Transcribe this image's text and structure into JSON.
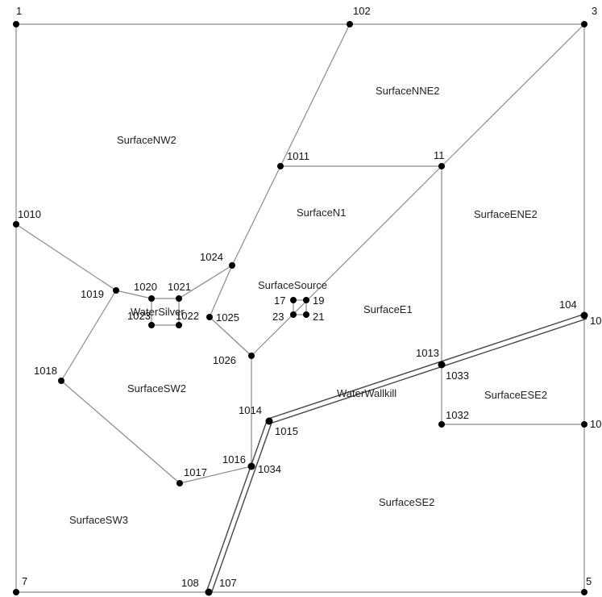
{
  "diagram": {
    "nodes": [
      {
        "id": "1",
        "label": "1"
      },
      {
        "id": "102",
        "label": "102"
      },
      {
        "id": "3",
        "label": "3"
      },
      {
        "id": "1011",
        "label": "1011"
      },
      {
        "id": "11",
        "label": "11"
      },
      {
        "id": "1010",
        "label": "1010"
      },
      {
        "id": "1024",
        "label": "1024"
      },
      {
        "id": "1019",
        "label": "1019"
      },
      {
        "id": "1020",
        "label": "1020"
      },
      {
        "id": "1021",
        "label": "1021"
      },
      {
        "id": "1023",
        "label": "1023"
      },
      {
        "id": "1022",
        "label": "1022"
      },
      {
        "id": "1025",
        "label": "1025"
      },
      {
        "id": "17",
        "label": "17"
      },
      {
        "id": "19",
        "label": "19"
      },
      {
        "id": "23",
        "label": "23"
      },
      {
        "id": "21",
        "label": "21"
      },
      {
        "id": "104",
        "label": "104"
      },
      {
        "id": "10r1",
        "label": "10"
      },
      {
        "id": "1026",
        "label": "1026"
      },
      {
        "id": "1013",
        "label": "1013"
      },
      {
        "id": "1033",
        "label": "1033"
      },
      {
        "id": "1018",
        "label": "1018"
      },
      {
        "id": "1014",
        "label": "1014"
      },
      {
        "id": "1015",
        "label": "1015"
      },
      {
        "id": "1032",
        "label": "1032"
      },
      {
        "id": "10r2",
        "label": "10"
      },
      {
        "id": "1016",
        "label": "1016"
      },
      {
        "id": "1034",
        "label": "1034"
      },
      {
        "id": "1017",
        "label": "1017"
      },
      {
        "id": "7",
        "label": "7"
      },
      {
        "id": "108",
        "label": "108"
      },
      {
        "id": "107",
        "label": "107"
      },
      {
        "id": "5",
        "label": "5"
      }
    ],
    "regions": [
      {
        "id": "nne2",
        "label": "SurfaceNNE2"
      },
      {
        "id": "nw2",
        "label": "SurfaceNW2"
      },
      {
        "id": "n1",
        "label": "SurfaceN1"
      },
      {
        "id": "ene2",
        "label": "SurfaceENE2"
      },
      {
        "id": "source",
        "label": "SurfaceSource"
      },
      {
        "id": "watersilver",
        "label": "WaterSilver"
      },
      {
        "id": "e1",
        "label": "SurfaceE1"
      },
      {
        "id": "sw2",
        "label": "SurfaceSW2"
      },
      {
        "id": "wallkill",
        "label": "WaterWallkill"
      },
      {
        "id": "ese2",
        "label": "SurfaceESE2"
      },
      {
        "id": "se2",
        "label": "SurfaceSE2"
      },
      {
        "id": "sw3",
        "label": "SurfaceSW3"
      }
    ],
    "edges": [
      [
        "1",
        "102"
      ],
      [
        "102",
        "3"
      ],
      [
        "3",
        "10r1"
      ],
      [
        "10r1",
        "10r2"
      ],
      [
        "10r2",
        "5"
      ],
      [
        "5",
        "107"
      ],
      [
        "108",
        "7"
      ],
      [
        "7",
        "1010"
      ],
      [
        "1010",
        "1"
      ],
      [
        "102",
        "1011"
      ],
      [
        "1011",
        "11"
      ],
      [
        "11",
        "3"
      ],
      [
        "1011",
        "1024"
      ],
      [
        "1010",
        "1019"
      ],
      [
        "1019",
        "1020"
      ],
      [
        "1021",
        "1024"
      ],
      [
        "1019",
        "1018"
      ],
      [
        "1018",
        "1017"
      ],
      [
        "1017",
        "1016"
      ],
      [
        "1024",
        "1025"
      ],
      [
        "1025",
        "1026"
      ],
      [
        "1026",
        "1016"
      ],
      [
        "1026",
        "11"
      ],
      [
        "11",
        "1013"
      ],
      [
        "1013",
        "1032"
      ],
      [
        "1032",
        "10r2"
      ],
      [
        "1020",
        "1021"
      ],
      [
        "1020",
        "1023"
      ],
      [
        "1021",
        "1022"
      ],
      [
        "1023",
        "1022"
      ],
      [
        "17",
        "19"
      ],
      [
        "19",
        "21"
      ],
      [
        "21",
        "23"
      ],
      [
        "23",
        "17"
      ]
    ]
  }
}
